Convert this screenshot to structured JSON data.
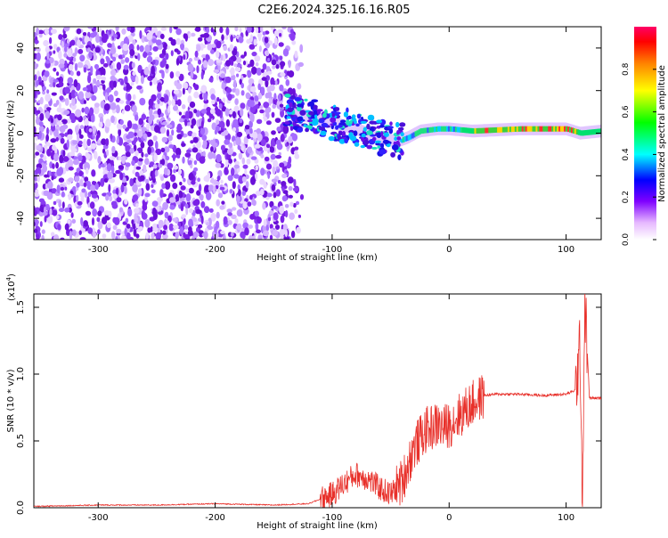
{
  "title": "C2E6.2024.325.16.16.R05",
  "colors": {
    "spectrogram_base": "#7f1fe6",
    "snr_line": "#e8302a",
    "axis": "#000000"
  },
  "chart_data": [
    {
      "type": "heatmap",
      "name": "spectrogram",
      "xlabel": "Height of straight line (km)",
      "ylabel": "Frequency (Hz)",
      "xlim": [
        -355,
        130
      ],
      "ylim": [
        -50,
        50
      ],
      "xticks": [
        -300,
        -200,
        -100,
        0,
        100
      ],
      "yticks": [
        -40,
        -20,
        0,
        20,
        40
      ],
      "xtick_labels": [
        "-300",
        "-200",
        "-100",
        "0",
        "100"
      ],
      "ytick_labels": [
        "-40",
        "-20",
        "0",
        "20",
        "40"
      ],
      "ridge": [
        {
          "x": -140,
          "y": 10
        },
        {
          "x": -120,
          "y": 8
        },
        {
          "x": -100,
          "y": 5
        },
        {
          "x": -80,
          "y": 2
        },
        {
          "x": -60,
          "y": -2
        },
        {
          "x": -45,
          "y": -4
        },
        {
          "x": -35,
          "y": -2
        },
        {
          "x": -25,
          "y": 1
        },
        {
          "x": -10,
          "y": 2
        },
        {
          "x": 0,
          "y": 2
        },
        {
          "x": 20,
          "y": 1
        },
        {
          "x": 60,
          "y": 2
        },
        {
          "x": 100,
          "y": 2
        },
        {
          "x": 112,
          "y": 0
        },
        {
          "x": 130,
          "y": 1
        }
      ],
      "colorbar": {
        "label": "Normalized spectral amplitude",
        "range": [
          0,
          1
        ],
        "ticks": [
          0.0,
          0.2,
          0.4,
          0.6,
          0.8
        ],
        "tick_labels": [
          "0.0",
          "0.2",
          "0.4",
          "0.6",
          "0.8"
        ]
      }
    },
    {
      "type": "line",
      "name": "snr",
      "xlabel": "Height of straight line (km)",
      "ylabel": "SNR (10 * v/v)",
      "multiplier_label": "(x10",
      "multiplier_exp": "4",
      "multiplier_close": ")",
      "xlim": [
        -355,
        130
      ],
      "ylim": [
        0,
        1.6
      ],
      "xticks": [
        -300,
        -200,
        -100,
        0,
        100
      ],
      "yticks": [
        0.0,
        0.5,
        1.0,
        1.5
      ],
      "xtick_labels": [
        "-300",
        "-200",
        "-100",
        "0",
        "100"
      ],
      "ytick_labels": [
        "0.0",
        "0.5",
        "1.0",
        "1.5"
      ],
      "series": [
        {
          "name": "SNR",
          "x": [
            -355,
            -300,
            -250,
            -200,
            -150,
            -120,
            -100,
            -90,
            -80,
            -70,
            -60,
            -50,
            -40,
            -30,
            -20,
            -10,
            -5,
            0,
            10,
            20,
            30,
            40,
            60,
            80,
            100,
            108,
            112,
            114,
            116,
            120,
            130
          ],
          "y": [
            0.01,
            0.02,
            0.02,
            0.03,
            0.02,
            0.03,
            0.1,
            0.18,
            0.25,
            0.22,
            0.15,
            0.1,
            0.2,
            0.45,
            0.58,
            0.62,
            0.6,
            0.62,
            0.7,
            0.78,
            0.84,
            0.85,
            0.85,
            0.84,
            0.85,
            0.88,
            1.2,
            0.05,
            1.55,
            0.82,
            0.82
          ]
        }
      ]
    }
  ]
}
